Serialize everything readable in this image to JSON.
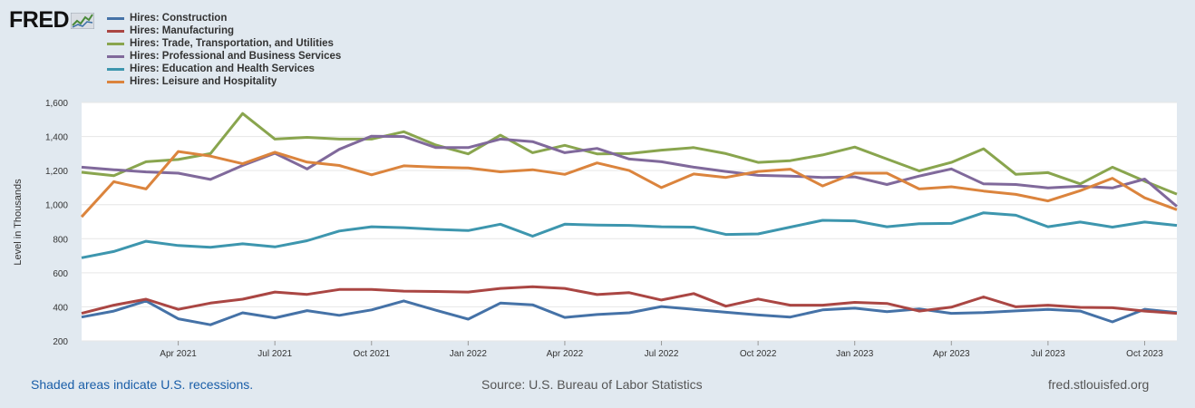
{
  "header": {
    "logo_text": "FRED"
  },
  "footer": {
    "note": "Shaded areas indicate U.S. recessions.",
    "source": "Source: U.S. Bureau of Labor Statistics",
    "site": "fred.stlouisfed.org"
  },
  "chart_data": {
    "type": "line",
    "title": "",
    "xlabel": "",
    "ylabel": "Level in Thousands",
    "ylim": [
      200,
      1600
    ],
    "yticks": [
      200,
      400,
      600,
      800,
      1000,
      1200,
      1400,
      1600
    ],
    "ytick_labels": [
      "200",
      "400",
      "600",
      "800",
      "1,000",
      "1,200",
      "1,400",
      "1,600"
    ],
    "x": [
      "2021-01",
      "2021-02",
      "2021-03",
      "2021-04",
      "2021-05",
      "2021-06",
      "2021-07",
      "2021-08",
      "2021-09",
      "2021-10",
      "2021-11",
      "2021-12",
      "2022-01",
      "2022-02",
      "2022-03",
      "2022-04",
      "2022-05",
      "2022-06",
      "2022-07",
      "2022-08",
      "2022-09",
      "2022-10",
      "2022-11",
      "2022-12",
      "2023-01",
      "2023-02",
      "2023-03",
      "2023-04",
      "2023-05",
      "2023-06",
      "2023-07",
      "2023-08",
      "2023-09",
      "2023-10",
      "2023-11"
    ],
    "xticks": [
      {
        "index": 3,
        "label": "Apr 2021"
      },
      {
        "index": 6,
        "label": "Jul 2021"
      },
      {
        "index": 9,
        "label": "Oct 2021"
      },
      {
        "index": 12,
        "label": "Jan 2022"
      },
      {
        "index": 15,
        "label": "Apr 2022"
      },
      {
        "index": 18,
        "label": "Jul 2022"
      },
      {
        "index": 21,
        "label": "Oct 2022"
      },
      {
        "index": 24,
        "label": "Jan 2023"
      },
      {
        "index": 27,
        "label": "Apr 2023"
      },
      {
        "index": 30,
        "label": "Jul 2023"
      },
      {
        "index": 33,
        "label": "Oct 2023"
      }
    ],
    "grid": true,
    "legend": "top-left",
    "series": [
      {
        "name": "Hires: Construction",
        "color": "#4572a7",
        "values": [
          340,
          375,
          435,
          330,
          295,
          365,
          335,
          378,
          350,
          382,
          435,
          380,
          328,
          422,
          412,
          338,
          355,
          365,
          402,
          385,
          368,
          352,
          340,
          382,
          392,
          372,
          388,
          362,
          366,
          376,
          385,
          375,
          312,
          386,
          366
        ]
      },
      {
        "name": "Hires: Manufacturing",
        "color": "#aa4643",
        "values": [
          362,
          410,
          445,
          385,
          422,
          445,
          487,
          473,
          502,
          502,
          492,
          490,
          487,
          508,
          518,
          508,
          472,
          483,
          440,
          478,
          404,
          446,
          410,
          410,
          426,
          420,
          375,
          398,
          458,
          400,
          410,
          397,
          395,
          375,
          362
        ]
      },
      {
        "name": "Hires: Trade, Transportation, and Utilities",
        "color": "#89a54e",
        "values": [
          1190,
          1170,
          1252,
          1265,
          1300,
          1535,
          1385,
          1395,
          1385,
          1385,
          1428,
          1350,
          1298,
          1408,
          1305,
          1348,
          1298,
          1300,
          1320,
          1335,
          1300,
          1248,
          1258,
          1292,
          1338,
          1268,
          1198,
          1248,
          1328,
          1178,
          1188,
          1122,
          1220,
          1138,
          1062
        ]
      },
      {
        "name": "Hires: Professional and Business Services",
        "color": "#80699b",
        "values": [
          1220,
          1205,
          1192,
          1185,
          1148,
          1230,
          1302,
          1210,
          1325,
          1402,
          1400,
          1335,
          1335,
          1385,
          1370,
          1305,
          1330,
          1268,
          1252,
          1220,
          1195,
          1172,
          1168,
          1160,
          1163,
          1118,
          1168,
          1210,
          1122,
          1118,
          1098,
          1108,
          1098,
          1150,
          990
        ]
      },
      {
        "name": "Hires: Education and Health Services",
        "color": "#3d96ae",
        "values": [
          688,
          725,
          785,
          760,
          750,
          770,
          752,
          788,
          845,
          870,
          865,
          855,
          848,
          885,
          815,
          885,
          880,
          878,
          870,
          868,
          825,
          828,
          868,
          908,
          905,
          870,
          888,
          890,
          952,
          938,
          870,
          898,
          868,
          898,
          878
        ]
      },
      {
        "name": "Hires: Leisure and Hospitality",
        "color": "#db843d",
        "values": [
          928,
          1135,
          1092,
          1312,
          1285,
          1240,
          1308,
          1250,
          1230,
          1175,
          1228,
          1220,
          1215,
          1193,
          1205,
          1178,
          1245,
          1200,
          1100,
          1180,
          1160,
          1195,
          1208,
          1110,
          1185,
          1185,
          1092,
          1105,
          1080,
          1060,
          1022,
          1082,
          1155,
          1040,
          970
        ]
      }
    ]
  }
}
